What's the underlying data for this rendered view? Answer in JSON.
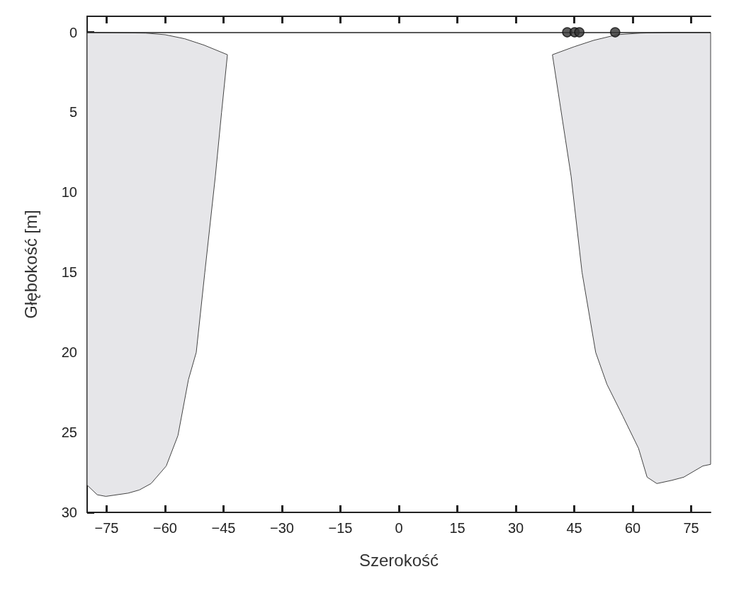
{
  "chart_data": {
    "type": "area",
    "xlabel": "Szerokość",
    "ylabel": "Głębokość [m]",
    "xlim": [
      -80,
      80
    ],
    "xticks": [
      -75,
      -60,
      -45,
      -30,
      -15,
      0,
      15,
      30,
      45,
      60,
      75
    ],
    "ylim": [
      30,
      -1
    ],
    "yticks": [
      0,
      5,
      10,
      15,
      20,
      25,
      30
    ],
    "grid": false,
    "ref_lines": [
      {
        "axis": "y",
        "value": 0,
        "color": "#222222"
      }
    ],
    "series": [
      {
        "color": "#e6e6e9",
        "x": [
          -80,
          -65,
          -60,
          -55,
          -50,
          -44,
          -45.5,
          -47.1,
          -49.8,
          -52,
          -54,
          -56.7,
          -59.7,
          -63.6,
          -66.6,
          -69.5,
          -75.2,
          -77.4,
          -80,
          -80
        ],
        "values": [
          0,
          0.05,
          0.15,
          0.4,
          0.8,
          1.4,
          5,
          9,
          15,
          20,
          21.7,
          25.2,
          27.1,
          28.2,
          28.6,
          28.8,
          29,
          28.9,
          28.3,
          0
        ]
      },
      {
        "color": "#e6e6e9",
        "x": [
          80,
          80,
          78,
          73.1,
          70,
          66.2,
          63.7,
          61.5,
          57.5,
          53.4,
          50.5,
          47,
          44.2,
          39.4,
          45,
          50,
          56,
          62,
          70,
          80
        ],
        "values": [
          0,
          27,
          27.1,
          27.8,
          28,
          28.2,
          27.8,
          26,
          24,
          22,
          20,
          15,
          9,
          1.4,
          0.9,
          0.5,
          0.15,
          0.05,
          0,
          0
        ]
      },
      {
        "type": "scatter",
        "color": "#333333",
        "marker": "circle",
        "x": [
          43.2,
          45.1,
          46.3,
          55.5
        ],
        "values": [
          0,
          0,
          0,
          0
        ]
      }
    ]
  }
}
